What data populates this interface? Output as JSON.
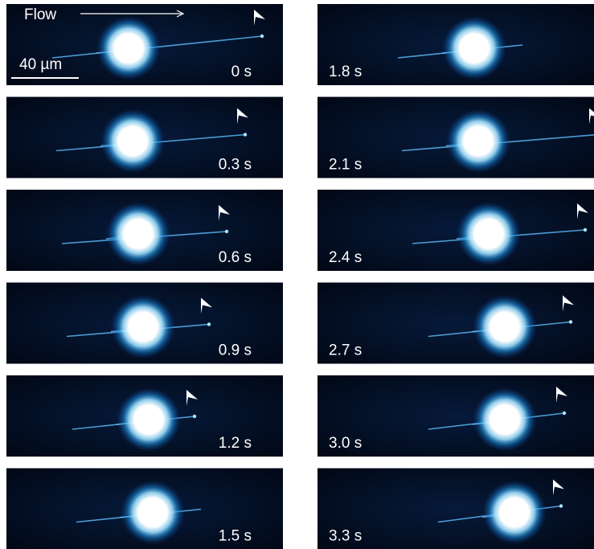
{
  "labels": {
    "flow": "Flow",
    "scale_bar": "40 µm"
  },
  "frames": [
    {
      "time": "0 s"
    },
    {
      "time": "0.3 s"
    },
    {
      "time": "0.6 s"
    },
    {
      "time": "0.9 s"
    },
    {
      "time": "1.2 s"
    },
    {
      "time": "1.5 s"
    },
    {
      "time": "1.8 s"
    },
    {
      "time": "2.1 s"
    },
    {
      "time": "2.4 s"
    },
    {
      "time": "2.7 s"
    },
    {
      "time": "3.0 s"
    },
    {
      "time": "3.3 s"
    }
  ]
}
